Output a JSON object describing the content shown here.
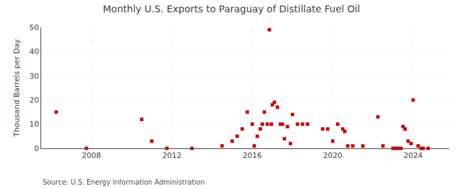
{
  "chart_data": {
    "type": "scatter",
    "title": "Monthly U.S. Exports to Paraguay of Distillate Fuel Oil",
    "y_label": "Thousand Barrels per Day",
    "annotations": [
      "Source: U.S. Energy Information Administration"
    ],
    "color": "#cc0000",
    "marker": "square",
    "grid": true,
    "xlim": [
      2005.5,
      2025.8
    ],
    "xticks": [
      2008,
      2012,
      2016,
      2020,
      2024
    ],
    "ylim": [
      0,
      50
    ],
    "yticks": [
      0,
      10,
      20,
      30,
      40,
      50
    ],
    "x": [
      2006.25,
      2007.75,
      2010.5,
      2011.0,
      2011.75,
      2013.0,
      2014.5,
      2015.0,
      2015.25,
      2015.5,
      2015.75,
      2016.0,
      2016.1,
      2016.25,
      2016.4,
      2016.5,
      2016.6,
      2016.75,
      2016.85,
      2016.95,
      2017.0,
      2017.1,
      2017.25,
      2017.4,
      2017.5,
      2017.6,
      2017.75,
      2017.9,
      2018.0,
      2018.25,
      2018.5,
      2018.75,
      2019.5,
      2019.75,
      2020.0,
      2020.25,
      2020.5,
      2020.6,
      2020.75,
      2021.0,
      2021.5,
      2022.25,
      2022.5,
      2023.0,
      2023.1,
      2023.25,
      2023.4,
      2023.5,
      2023.6,
      2023.75,
      2023.9,
      2024.0,
      2024.25,
      2024.4,
      2024.5,
      2024.75
    ],
    "values": [
      15,
      0,
      12,
      3,
      0,
      0,
      1,
      3,
      5,
      8,
      15,
      10,
      1,
      5,
      8,
      10,
      15,
      10,
      49,
      10,
      18,
      19,
      17,
      10,
      10,
      4,
      9,
      2,
      14,
      10,
      10,
      10,
      8,
      8,
      3,
      10,
      8,
      7,
      1,
      1,
      1,
      13,
      1,
      0,
      0,
      0,
      0,
      9,
      8,
      3,
      2,
      20,
      1,
      0,
      0,
      0
    ]
  }
}
